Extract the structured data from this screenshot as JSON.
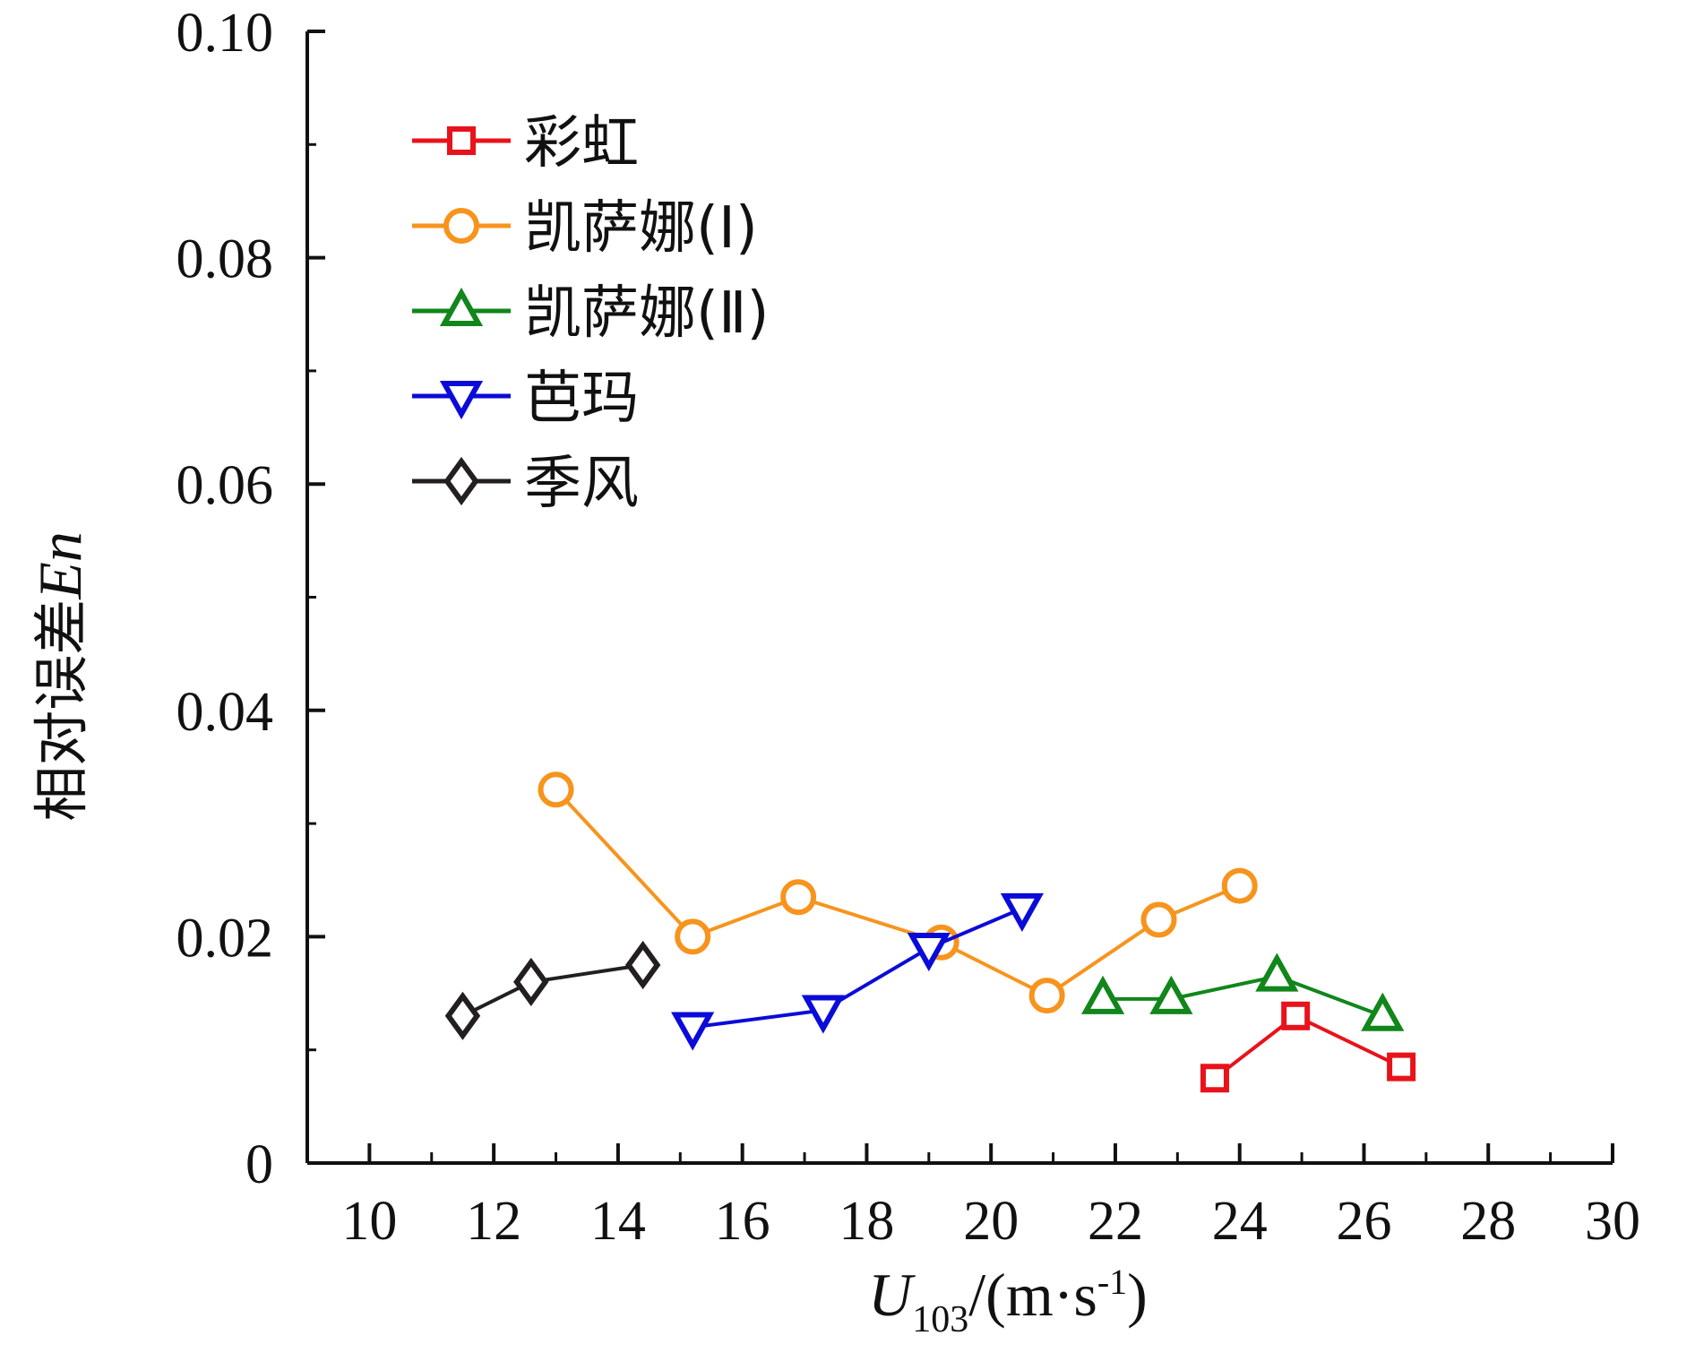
{
  "chart_data": {
    "type": "line",
    "xlabel": {
      "var": "U",
      "sub": "103",
      "unit": "/(m·s",
      "sup": "-1",
      "close": ")"
    },
    "ylabel": {
      "text": "相对误差",
      "var": "En"
    },
    "xlim": [
      9,
      30
    ],
    "ylim": [
      0,
      0.1
    ],
    "x_ticks": [
      "10",
      "12",
      "14",
      "16",
      "18",
      "20",
      "22",
      "24",
      "26",
      "28",
      "30"
    ],
    "y_ticks": [
      "0",
      "0.02",
      "0.04",
      "0.06",
      "0.08",
      "0.10"
    ],
    "grid": false,
    "legend_position": "top-left",
    "series": [
      {
        "name": "彩虹",
        "color": "#e8121b",
        "marker": "square",
        "x": [
          23.6,
          24.9,
          26.6
        ],
        "y": [
          0.0075,
          0.013,
          0.0085
        ]
      },
      {
        "name": "凯萨娜(Ⅰ)",
        "color": "#f7941d",
        "marker": "circle",
        "x": [
          13.0,
          15.2,
          16.9,
          19.2,
          20.9,
          22.7,
          24.0
        ],
        "y": [
          0.033,
          0.02,
          0.0235,
          0.0195,
          0.0148,
          0.0215,
          0.0245
        ]
      },
      {
        "name": "凯萨娜(Ⅱ)",
        "color": "#11861b",
        "marker": "triangle-up",
        "x": [
          21.8,
          22.9,
          24.6,
          26.3
        ],
        "y": [
          0.0145,
          0.0145,
          0.0165,
          0.013
        ]
      },
      {
        "name": "芭玛",
        "color": "#0b0bd9",
        "marker": "triangle-down",
        "x": [
          15.2,
          17.3,
          19.0,
          20.5
        ],
        "y": [
          0.012,
          0.0135,
          0.019,
          0.0225
        ]
      },
      {
        "name": "季风",
        "color": "#231f20",
        "marker": "diamond",
        "x": [
          11.5,
          12.6,
          14.4
        ],
        "y": [
          0.013,
          0.016,
          0.0175
        ]
      }
    ]
  }
}
